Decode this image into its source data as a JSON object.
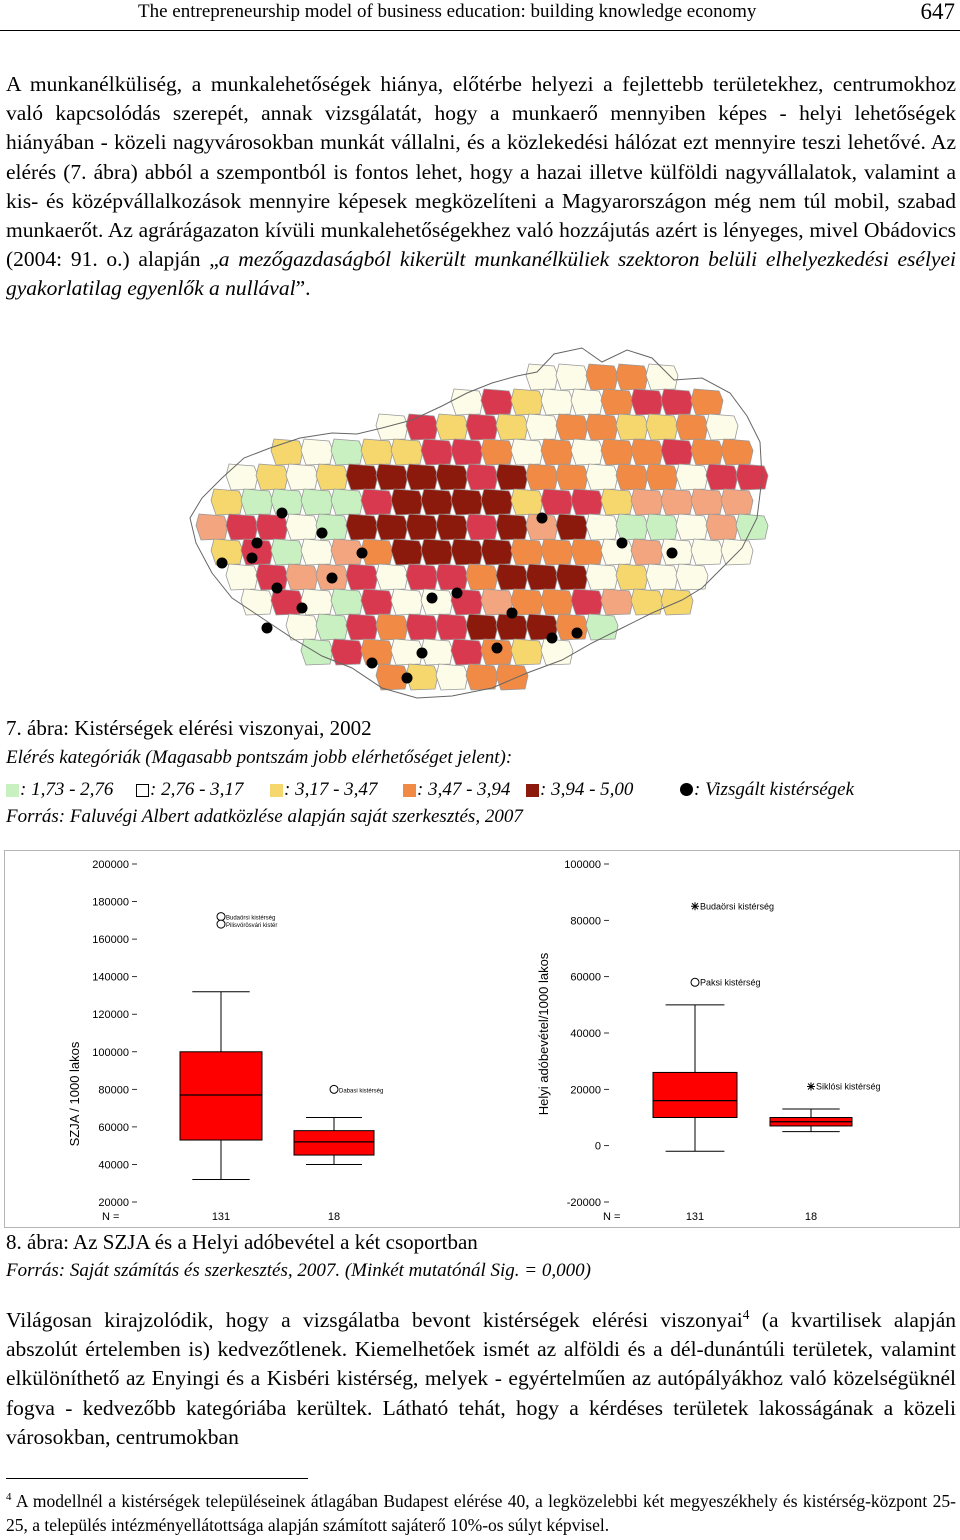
{
  "header": {
    "title": "The entrepreneurship model of business education: building knowledge economy",
    "page": "647"
  },
  "para1": {
    "a": "A munkanélküliség, a munkalehetőségek hiánya, előtérbe helyezi a fejlettebb területekhez, centrumokhoz való kapcsolódás szerepét, annak vizsgálatát, hogy a munkaerő mennyiben képes - helyi lehetőségek hiányában - közeli nagyvárosokban munkát vállalni, és a közlekedési hálózat ezt mennyire teszi lehetővé. Az elérés (7. ábra) abból a szempontból is fontos lehet, hogy a hazai illetve külföldi nagyvállalatok, valamint a kis- és középvállalkozások mennyire képesek megközelíteni a Magyarországon még nem túl mobil, szabad munkaerőt. Az agrárágazaton kívüli munkalehetőségekhez való hozzájutás azért is lényeges, mivel Obádovics (2004: 91. o.) alapján „",
    "italic": "a mezőgazdaságból kikerült munkanélküliek szektoron belüli elhelyezkedési esélyei gyakorlatilag egyenlők a nullával",
    "b": "”."
  },
  "fig7": {
    "caption": "7. ábra: Kistérségek elérési viszonyai, 2002",
    "subtitle": "Elérés kategóriák (Magasabb pontszám jobb elérhetőséget jelent):",
    "legend": [
      {
        "label": ": 1,73 - 2,76",
        "color": "#c8f0c0"
      },
      {
        "label": ": 2,76 - 3,17",
        "color": "#ffffff"
      },
      {
        "label": ": 3,17 - 3,47",
        "color": "#f5d76e"
      },
      {
        "label": ": 3,47 - 3,94",
        "color": "#f08a45"
      },
      {
        "label": ": 3,94 - 5,00",
        "color": "#8b1a0c"
      }
    ],
    "dot_label": ": Vizsgált kistérségek",
    "source": "Forrás: Faluvégi Albert adatközlése alapján saját szerkesztés, 2007",
    "map_colors": {
      "green": "#c8f0c0",
      "white": "#fdfce8",
      "yellow": "#f5d76e",
      "orange": "#f08a45",
      "darkred": "#8b1a0c",
      "pink": "#d9394f",
      "lightpink": "#f2a57e"
    }
  },
  "chart_data": [
    {
      "type": "box",
      "ylabel": "SZJA / 1000 lakos",
      "yticks": [
        "200000",
        "180000",
        "160000",
        "140000",
        "120000",
        "100000",
        "80000",
        "60000",
        "40000",
        "20000"
      ],
      "ylim": [
        20000,
        200000
      ],
      "n_label": "N =",
      "groups": [
        {
          "n": "131",
          "whisker_low": 32000,
          "q1": 53000,
          "median": 77000,
          "q3": 100000,
          "whisker_high": 132000,
          "outliers": [
            {
              "value": 172000,
              "label": "Budaörsi kistérség"
            },
            {
              "value": 168000,
              "label": "Pilisvörösvári kistér"
            }
          ]
        },
        {
          "n": "18",
          "whisker_low": 40000,
          "q1": 45000,
          "median": 52000,
          "q3": 58000,
          "whisker_high": 65000,
          "outliers": [
            {
              "value": 80000,
              "label": "Dabasi kistérség"
            }
          ]
        }
      ],
      "box_color": "#ff0000"
    },
    {
      "type": "box",
      "ylabel": "Helyi adóbevétel/1000 lakos",
      "yticks": [
        "100000",
        "80000",
        "60000",
        "40000",
        "20000",
        "0",
        "-20000"
      ],
      "ylim": [
        -20000,
        100000
      ],
      "n_label": "N =",
      "groups": [
        {
          "n": "131",
          "whisker_low": -2000,
          "q1": 10000,
          "median": 16000,
          "q3": 26000,
          "whisker_high": 50000,
          "outliers": [
            {
              "value": 58000,
              "label": "Paksi kistérség",
              "marker": "circle"
            },
            {
              "value": 85000,
              "label": "Budaörsi kistérség",
              "marker": "star"
            }
          ]
        },
        {
          "n": "18",
          "whisker_low": 5000,
          "q1": 7000,
          "median": 8500,
          "q3": 10000,
          "whisker_high": 13000,
          "outliers": [
            {
              "value": 21000,
              "label": "Siklósi kistérség",
              "marker": "star"
            }
          ]
        }
      ],
      "box_color": "#ff0000"
    }
  ],
  "fig8": {
    "caption": "8. ábra: Az SZJA és a Helyi adóbevétel a két csoportban",
    "source": "Forrás: Saját számítás és szerkesztés, 2007. (Minkét mutatónál Sig. = 0,000)"
  },
  "para2": {
    "a": "Világosan kirajzolódik, hogy a vizsgálatba bevont kistérségek elérési viszonyai",
    "sup": "4",
    "b": " (a kvartilisek alapján abszolút értelemben is) kedvezőtlenek. Kiemelhetőek ismét az alföldi és a dél-dunántúli területek, valamint elkülöníthető az Enyingi és a Kisbéri kistérség, melyek - egyértelműen az autópályákhoz való közelségüknél fogva - kedvezőbb kategóriába kerültek. Látható tehát, hogy a kérdéses területek lakosságának a közeli városokban, centrumokban"
  },
  "footnote": {
    "num": "4",
    "text": " A modellnél a kistérségek településeinek átlagában Budapest elérése 40, a legközelebbi két megyeszékhely és kistérség-központ 25-25, a település intézményellátottsága alapján számított sajáterő 10%-os súlyt képvisel."
  }
}
